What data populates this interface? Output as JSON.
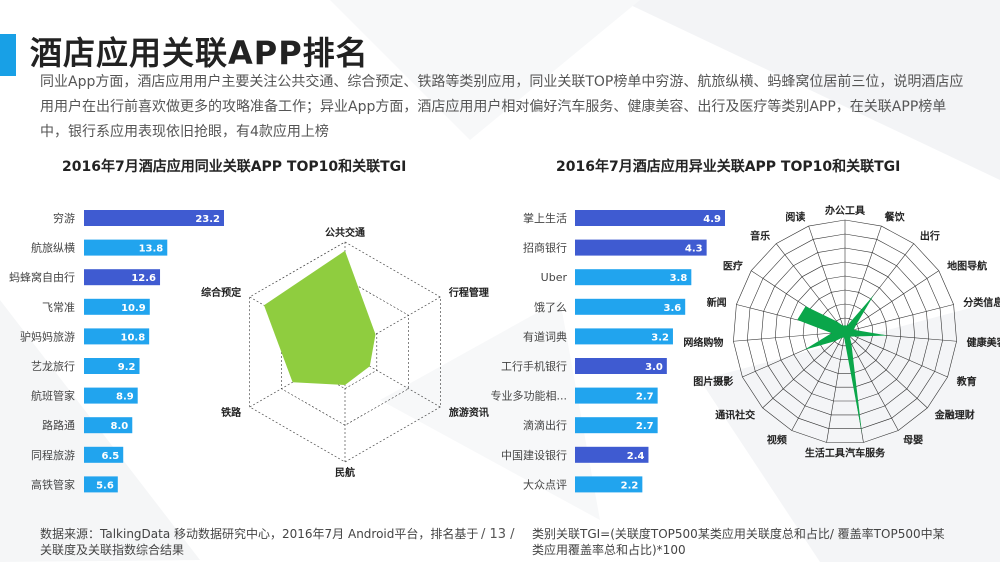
{
  "page": {
    "title": "酒店应用关联APP排名",
    "intro": "同业App方面，酒店应用用户主要关注公共交通、综合预定、铁路等类别应用，同业关联TOP榜单中穷游、航旅纵横、蚂蜂窝位居前三位，说明酒店应用用户在出行前喜欢做更多的攻略准备工作；异业App方面，酒店应用用户相对偏好汽车服务、健康美容、出行及医疗等类别APP，在关联APP榜单中，银行系应用表现依旧抢眼，有4款应用上榜",
    "footer_source": "数据来源：TalkingData 移动数据研究中心，2016年7月 Android平台，排名基于关联度及关联指数综合结果",
    "page_number": "/ 13 /",
    "footer_note": "类别关联TGI=(关联度TOP500某类应用关联度总和占比/ 覆盖率TOP500中某类应用覆盖率总和占比)*100"
  },
  "colors": {
    "accent": "#18a0e6",
    "bar_dark": "#3f5bd1",
    "bar_light": "#21a4ee",
    "radar_left": "#8fcd3f",
    "radar_right": "#0aa64a",
    "grid": "#333333"
  },
  "chart_data": [
    {
      "type": "bar",
      "title": "2016年7月酒店应用同业关联APP TOP10和关联TGI",
      "categories": [
        "穷游",
        "航旅纵横",
        "蚂蜂窝自由行",
        "飞常准",
        "驴妈妈旅游",
        "艺龙旅行",
        "航班管家",
        "路路通",
        "同程旅游",
        "高铁管家"
      ],
      "values": [
        23.2,
        13.8,
        12.6,
        10.9,
        10.8,
        9.2,
        8.9,
        8.0,
        6.5,
        5.6
      ],
      "bar_colors": [
        "dark",
        "light",
        "dark",
        "light",
        "light",
        "light",
        "light",
        "light",
        "light",
        "light"
      ],
      "labels": [
        "23.2",
        "13.8",
        "12.6",
        "10.9",
        "10.8",
        "9.2",
        "8.9",
        "8.0",
        "6.5",
        "5.6"
      ],
      "xlim": [
        0,
        23.2
      ]
    },
    {
      "type": "radar",
      "title": "",
      "axes": [
        "公共交通",
        "行程管理",
        "旅游资讯",
        "民航",
        "铁路",
        "综合预定"
      ],
      "values": [
        0.92,
        0.32,
        0.26,
        0.3,
        0.55,
        0.85
      ],
      "rings": 3
    },
    {
      "type": "bar",
      "title": "2016年7月酒店应用异业关联APP TOP10和关联TGI",
      "categories": [
        "掌上生活",
        "招商银行",
        "Uber",
        "饿了么",
        "有道词典",
        "工行手机银行",
        "专业多功能相...",
        "滴滴出行",
        "中国建设银行",
        "大众点评"
      ],
      "values": [
        4.9,
        4.3,
        3.8,
        3.6,
        3.2,
        3.0,
        2.7,
        2.7,
        2.4,
        2.2
      ],
      "bar_colors": [
        "dark",
        "dark",
        "light",
        "light",
        "light",
        "dark",
        "light",
        "light",
        "dark",
        "light"
      ],
      "labels": [
        "4.9",
        "4.3",
        "3.8",
        "3.6",
        "3.2",
        "3.0",
        "2.7",
        "2.7",
        "2.4",
        "2.2"
      ],
      "xlim": [
        0,
        4.9
      ]
    },
    {
      "type": "radar",
      "title": "",
      "axes": [
        "办公工具",
        "餐饮",
        "出行",
        "地图导航",
        "分类信息",
        "健康美容",
        "教育",
        "金融理财",
        "母婴",
        "汽车服务",
        "生活工具",
        "视频",
        "通讯社交",
        "图片摄影",
        "网络购物",
        "新闻",
        "医疗",
        "音乐",
        "阅读"
      ],
      "values": [
        0.06,
        0.06,
        0.42,
        0.12,
        0.08,
        0.38,
        0.1,
        0.06,
        0.12,
        0.92,
        0.05,
        0.06,
        0.12,
        0.4,
        0.12,
        0.44,
        0.42,
        0.12,
        0.06
      ],
      "rings": 8
    }
  ]
}
